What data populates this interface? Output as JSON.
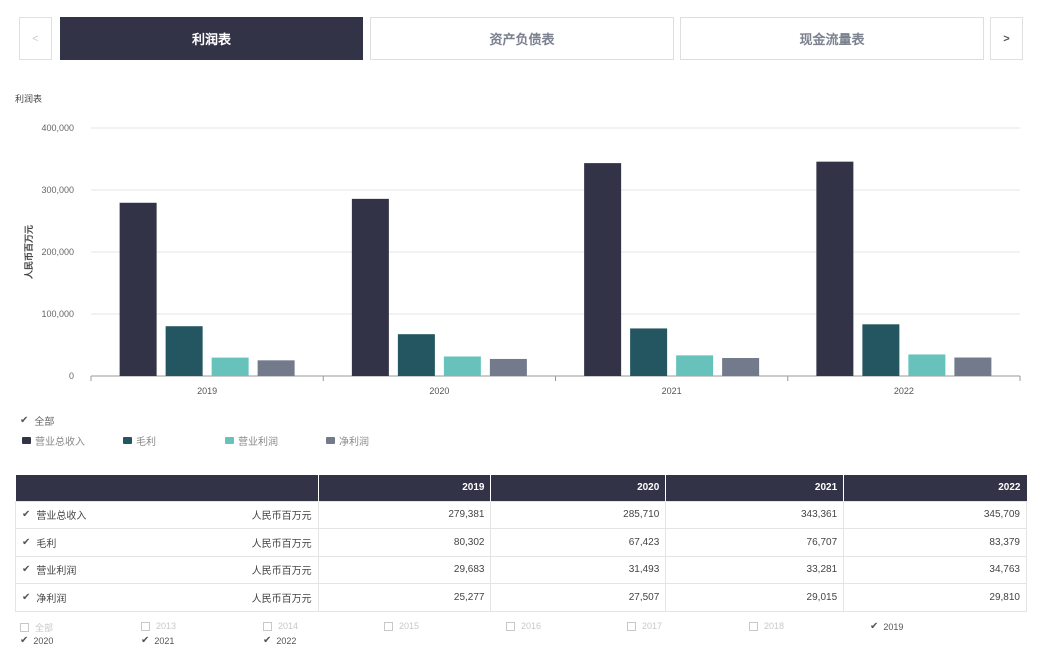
{
  "tabs": {
    "prev": "<",
    "next": ">",
    "items": [
      {
        "label": "利润表",
        "active": true
      },
      {
        "label": "资产负债表",
        "active": false
      },
      {
        "label": "现金流量表",
        "active": false
      }
    ]
  },
  "chart_title": "利润表",
  "chart_data": {
    "type": "bar",
    "categories": [
      "2019",
      "2020",
      "2021",
      "2022"
    ],
    "ylabel": "人民币百万元",
    "ylim": [
      0,
      400000
    ],
    "yticks": [
      "0",
      "100,000",
      "200,000",
      "300,000",
      "400,000"
    ],
    "grid": true,
    "legend_position": "bottom-left",
    "series": [
      {
        "name": "营业总收入",
        "color": "#333348",
        "values": [
          279381,
          285710,
          343361,
          345709
        ]
      },
      {
        "name": "毛利",
        "color": "#235661",
        "values": [
          80302,
          67423,
          76707,
          83379
        ]
      },
      {
        "name": "营业利润",
        "color": "#68c2bc",
        "values": [
          29683,
          31493,
          33281,
          34763
        ]
      },
      {
        "name": "净利润",
        "color": "#737a8c",
        "values": [
          25277,
          27507,
          29015,
          29810
        ]
      }
    ]
  },
  "legend": {
    "all_label": "全部",
    "items": [
      "营业总收入",
      "毛利",
      "营业利润",
      "净利润"
    ]
  },
  "table": {
    "headers": [
      "",
      "2019",
      "2020",
      "2021",
      "2022"
    ],
    "rows": [
      {
        "name": "营业总收入",
        "unit": "人民币百万元",
        "values": [
          "279,381",
          "285,710",
          "343,361",
          "345,709"
        ]
      },
      {
        "name": "毛利",
        "unit": "人民币百万元",
        "values": [
          "80,302",
          "67,423",
          "76,707",
          "83,379"
        ]
      },
      {
        "name": "营业利润",
        "unit": "人民币百万元",
        "values": [
          "29,683",
          "31,493",
          "33,281",
          "34,763"
        ]
      },
      {
        "name": "净利润",
        "unit": "人民币百万元",
        "values": [
          "25,277",
          "27,507",
          "29,015",
          "29,810"
        ]
      }
    ]
  },
  "year_filter": {
    "items": [
      {
        "label": "全部",
        "checked": false
      },
      {
        "label": "2013",
        "checked": false
      },
      {
        "label": "2014",
        "checked": false
      },
      {
        "label": "2015",
        "checked": false
      },
      {
        "label": "2016",
        "checked": false
      },
      {
        "label": "2017",
        "checked": false
      },
      {
        "label": "2018",
        "checked": false
      },
      {
        "label": "2019",
        "checked": true
      },
      {
        "label": "2020",
        "checked": true
      },
      {
        "label": "2021",
        "checked": true
      },
      {
        "label": "2022",
        "checked": true
      }
    ]
  },
  "colors": {
    "primary": "#333348",
    "check": "#555555"
  }
}
